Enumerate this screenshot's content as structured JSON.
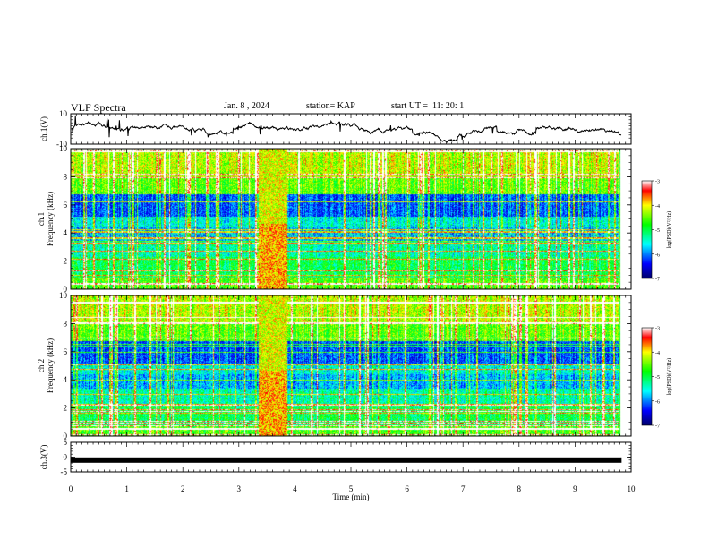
{
  "header": {
    "title": "VLF Spectra",
    "date": "Jan. 8 , 2024",
    "station": "station= KAP",
    "start_ut": "start UT =  11: 20: 1"
  },
  "chart_data": [
    {
      "type": "line",
      "name": "ch1-waveform",
      "ylabel": "ch.1(V)",
      "ylim": [
        -10,
        10
      ],
      "yticks": [
        "10",
        "-10"
      ],
      "xlim": [
        0,
        10
      ]
    },
    {
      "type": "heatmap",
      "name": "ch1-spectrogram",
      "ylabel_lines": [
        "ch.1",
        "Frequency (kHz)"
      ],
      "ylim": [
        0,
        10
      ],
      "yticks": [
        "0",
        "2",
        "4",
        "6",
        "8",
        "10"
      ],
      "xlim": [
        0,
        10
      ],
      "colorbar": {
        "label": "log(PSD)(V²/Hz)",
        "range": [
          -7,
          -3
        ],
        "ticks": [
          "-3",
          "-4",
          "-5",
          "-6",
          "-7"
        ]
      },
      "broadband_interval_min": [
        3.35,
        3.85
      ]
    },
    {
      "type": "heatmap",
      "name": "ch2-spectrogram",
      "ylabel_lines": [
        "ch.2",
        "Frequency (kHz)"
      ],
      "ylim": [
        0,
        10
      ],
      "yticks": [
        "0",
        "2",
        "4",
        "6",
        "8",
        "10"
      ],
      "xlim": [
        0,
        10
      ],
      "colorbar": {
        "label": "log(PSD)(V²/Hz)",
        "range": [
          -7,
          -3
        ],
        "ticks": [
          "-3",
          "-4",
          "-5",
          "-6",
          "-7"
        ]
      },
      "broadband_interval_min": [
        3.35,
        3.85
      ]
    },
    {
      "type": "line",
      "name": "ch3-waveform",
      "ylabel": "ch.3(V)",
      "ylim": [
        -5,
        5
      ],
      "yticks": [
        "5",
        "0",
        "-5"
      ],
      "xlim": [
        0,
        10
      ],
      "xticks": [
        "0",
        "1",
        "2",
        "3",
        "4",
        "5",
        "6",
        "7",
        "8",
        "9",
        "10"
      ],
      "xlabel": "Time (min)",
      "constant_value": -1,
      "data_end_min": 9.83
    }
  ]
}
